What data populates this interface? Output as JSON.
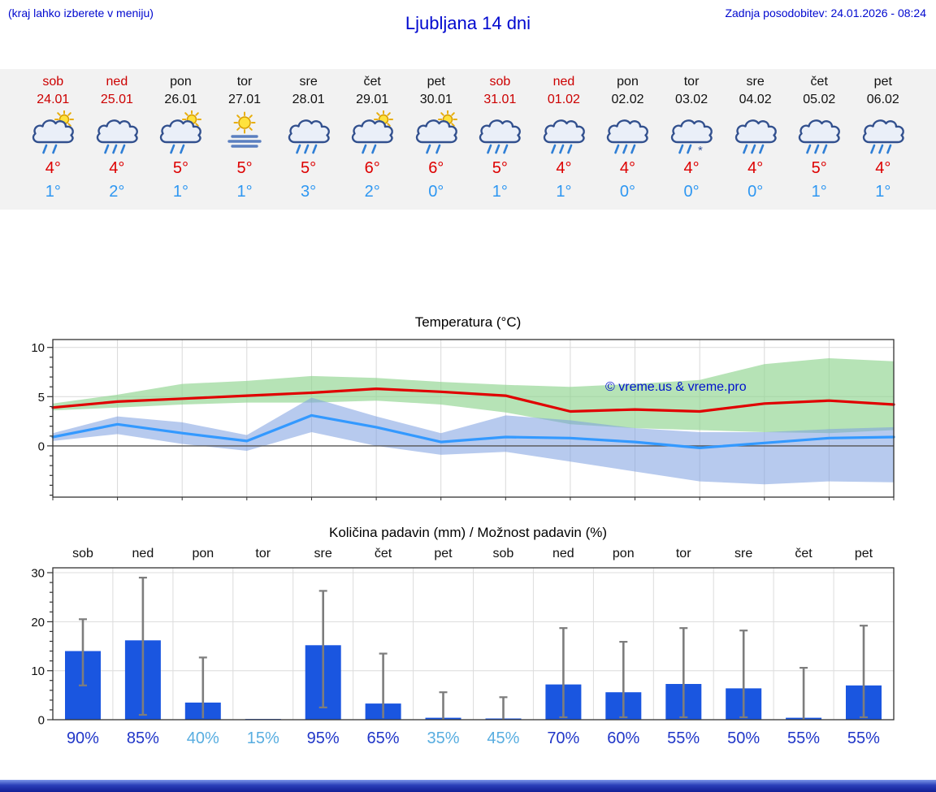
{
  "header": {
    "hint": "(kraj lahko izberete v meniju)",
    "title": "Ljubljana 14 dni",
    "updated": "Zadnja posodobitev: 24.01.2026 - 08:24"
  },
  "colors": {
    "header_blue": "#0008cf",
    "weekend_red": "#cc0000",
    "tmax_red": "#dd0000",
    "tmin_blue": "#2e97f2",
    "strip_bg": "#f2f2f2",
    "bar_blue": "#1a56e0",
    "whisker_gray": "#7d7d7d",
    "prob_high_blue": "#2036c8",
    "prob_low_blue": "#58ade0",
    "max_band_green": "#8fd48f",
    "min_band_blue": "#7b9fe0"
  },
  "forecast": {
    "days": [
      {
        "name": "sob",
        "date": "24.01",
        "weekend": true,
        "icon": "sun-cloud-rain",
        "tmax": "4°",
        "tmin": "1°"
      },
      {
        "name": "ned",
        "date": "25.01",
        "weekend": true,
        "icon": "cloud-rain",
        "tmax": "4°",
        "tmin": "2°"
      },
      {
        "name": "pon",
        "date": "26.01",
        "weekend": false,
        "icon": "sun-cloud-rain",
        "tmax": "5°",
        "tmin": "1°"
      },
      {
        "name": "tor",
        "date": "27.01",
        "weekend": false,
        "icon": "sun-fog",
        "tmax": "5°",
        "tmin": "1°"
      },
      {
        "name": "sre",
        "date": "28.01",
        "weekend": false,
        "icon": "cloud-rain",
        "tmax": "5°",
        "tmin": "3°"
      },
      {
        "name": "čet",
        "date": "29.01",
        "weekend": false,
        "icon": "sun-cloud-rain",
        "tmax": "6°",
        "tmin": "2°"
      },
      {
        "name": "pet",
        "date": "30.01",
        "weekend": false,
        "icon": "sun-cloud-rain",
        "tmax": "6°",
        "tmin": "0°"
      },
      {
        "name": "sob",
        "date": "31.01",
        "weekend": true,
        "icon": "cloud-rain",
        "tmax": "5°",
        "tmin": "1°"
      },
      {
        "name": "ned",
        "date": "01.02",
        "weekend": true,
        "icon": "cloud-rain",
        "tmax": "4°",
        "tmin": "1°"
      },
      {
        "name": "pon",
        "date": "02.02",
        "weekend": false,
        "icon": "cloud-rain",
        "tmax": "4°",
        "tmin": "0°"
      },
      {
        "name": "tor",
        "date": "03.02",
        "weekend": false,
        "icon": "cloud-rain-snow",
        "tmax": "4°",
        "tmin": "0°"
      },
      {
        "name": "sre",
        "date": "04.02",
        "weekend": false,
        "icon": "cloud-rain",
        "tmax": "4°",
        "tmin": "0°"
      },
      {
        "name": "čet",
        "date": "05.02",
        "weekend": false,
        "icon": "cloud-rain",
        "tmax": "5°",
        "tmin": "1°"
      },
      {
        "name": "pet",
        "date": "06.02",
        "weekend": false,
        "icon": "cloud-rain",
        "tmax": "4°",
        "tmin": "1°"
      }
    ]
  },
  "chart_data": [
    {
      "type": "line",
      "title": "Temperatura (°C)",
      "watermark": "© vreme.us & vreme.pro",
      "x_categories": [
        "sob",
        "ned",
        "pon",
        "tor",
        "sre",
        "čet",
        "pet",
        "sob",
        "ned",
        "pon",
        "tor",
        "sre",
        "čet",
        "pet"
      ],
      "ylim": [
        -5.2,
        10.8
      ],
      "yticks": [
        0,
        5,
        10
      ],
      "grid": true,
      "series": [
        {
          "name": "max temperature",
          "color": "#e00000",
          "values": [
            3.9,
            4.5,
            4.8,
            5.1,
            5.4,
            5.8,
            5.5,
            5.1,
            3.5,
            3.7,
            3.5,
            4.3,
            4.6,
            4.2
          ]
        },
        {
          "name": "min temperature",
          "color": "#3399ff",
          "values": [
            0.9,
            2.2,
            1.3,
            0.5,
            3.1,
            1.9,
            0.4,
            0.9,
            0.8,
            0.4,
            -0.2,
            0.3,
            0.8,
            0.9
          ]
        }
      ],
      "bands": [
        {
          "name": "max temperature range",
          "color": "#8fd48f",
          "upper": [
            4.3,
            5.2,
            6.3,
            6.6,
            7.1,
            6.9,
            6.5,
            6.2,
            6.0,
            6.3,
            6.7,
            8.3,
            8.9,
            8.6
          ],
          "lower": [
            3.6,
            3.9,
            4.2,
            4.4,
            4.4,
            4.6,
            4.2,
            3.4,
            2.2,
            1.8,
            1.6,
            1.4,
            1.3,
            1.6
          ]
        },
        {
          "name": "min temperature range",
          "color": "#7b9fe0",
          "upper": [
            1.3,
            3.0,
            2.4,
            1.1,
            4.9,
            3.0,
            1.3,
            3.1,
            2.6,
            1.8,
            1.4,
            1.4,
            1.7,
            1.9
          ],
          "lower": [
            0.5,
            1.2,
            0.2,
            -0.5,
            1.4,
            0.0,
            -0.9,
            -0.6,
            -1.6,
            -2.6,
            -3.6,
            -3.9,
            -3.6,
            -3.7
          ]
        }
      ]
    },
    {
      "type": "bar",
      "title": "Količina padavin (mm) / Možnost padavin (%)",
      "categories": [
        "sob",
        "ned",
        "pon",
        "tor",
        "sre",
        "čet",
        "pet",
        "sob",
        "ned",
        "pon",
        "tor",
        "sre",
        "čet",
        "pet"
      ],
      "values": [
        14.0,
        16.2,
        3.5,
        0.15,
        15.2,
        3.3,
        0.4,
        0.25,
        7.2,
        5.6,
        7.3,
        6.4,
        0.4,
        7.0
      ],
      "whisker_low": [
        7.0,
        1.0,
        0.3,
        0.0,
        2.5,
        0.3,
        0.0,
        0.0,
        0.5,
        0.5,
        0.5,
        0.5,
        0.0,
        0.5
      ],
      "whisker_high": [
        20.5,
        29.0,
        12.7,
        0.3,
        26.3,
        13.5,
        5.6,
        4.6,
        18.7,
        15.9,
        18.7,
        18.2,
        10.6,
        19.2
      ],
      "probabilities": [
        "90%",
        "85%",
        "40%",
        "15%",
        "95%",
        "65%",
        "35%",
        "45%",
        "70%",
        "60%",
        "55%",
        "50%",
        "55%",
        "55%"
      ],
      "ylim": [
        0,
        31
      ],
      "yticks": [
        0,
        10,
        20,
        30
      ],
      "bar_color": "#1a56e0",
      "grid": true
    }
  ]
}
